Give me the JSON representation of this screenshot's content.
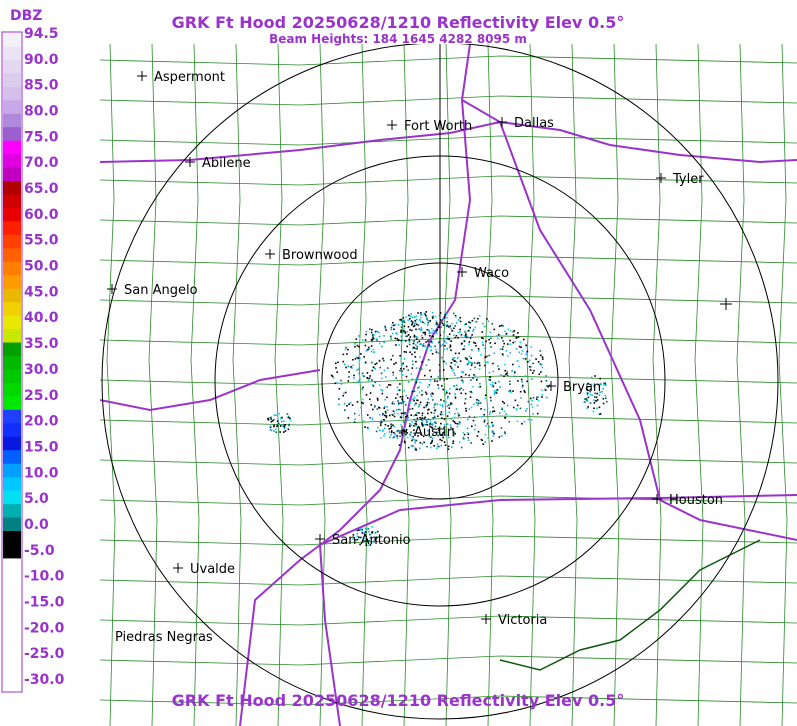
{
  "header": {
    "title": "GRK Ft Hood 20250628/1210 Reflectivity Elev 0.5°",
    "subtitle": "Beam Heights: 184 1645 4282 8095 m"
  },
  "legend": {
    "unit": "DBZ",
    "labels": [
      "94.5",
      "90.0",
      "85.0",
      "80.0",
      "75.0",
      "70.0",
      "65.0",
      "60.0",
      "55.0",
      "50.0",
      "45.0",
      "40.0",
      "35.0",
      "30.0",
      "25.0",
      "20.0",
      "15.0",
      "10.0",
      "5.0",
      "0.0",
      "-5.0",
      "-10.0",
      "-15.0",
      "-20.0",
      "-25.0",
      "-30.0"
    ]
  },
  "cities": [
    "Aspermont",
    "Fort Worth",
    "Dallas",
    "Abilene",
    "Tyler",
    "Brownwood",
    "Waco",
    "San Angelo",
    "Bryan",
    "Austin",
    "Houston",
    "San Antonio",
    "Uvalde",
    "Victoria",
    "Piedras Negras"
  ],
  "footer": {
    "title": "GRK Ft Hood 20250628/1210 Reflectivity Elev 0.5°"
  }
}
